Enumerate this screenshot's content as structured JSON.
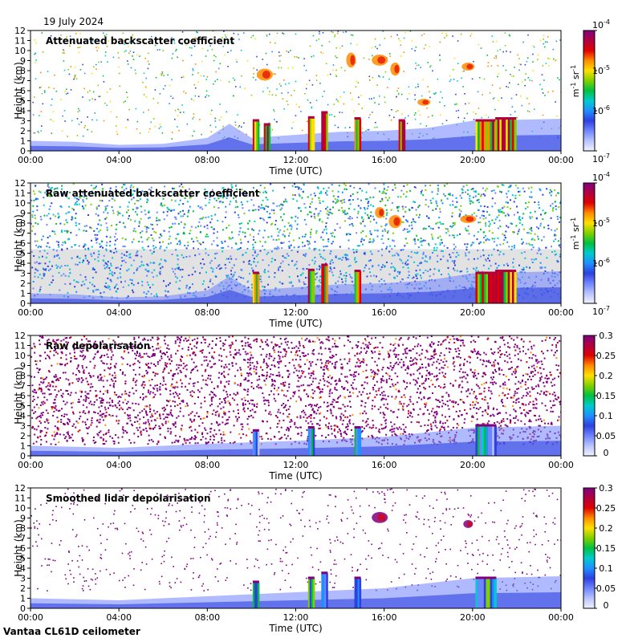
{
  "figure": {
    "date": "19 July 2024",
    "footer": "Vantaa CL61D ceilometer"
  },
  "colors": {
    "colormap": [
      "#f2f2ff",
      "#b8c4ff",
      "#6f84ff",
      "#2f40e0",
      "#1e90ff",
      "#00cccc",
      "#00c040",
      "#80d000",
      "#ffe000",
      "#ff8c00",
      "#e00000",
      "#b00040",
      "#800080"
    ],
    "panel_background": "#ffffff",
    "raw_noise_background": "#cfcfcf",
    "depol_noise": "#800080"
  },
  "chart_data": [
    {
      "type": "heatmap",
      "title": "Attenuated backscatter coefficient",
      "xlabel": "Time (UTC)",
      "ylabel": "Height (km)",
      "x_ticks": [
        "00:00",
        "04:00",
        "08:00",
        "12:00",
        "16:00",
        "20:00",
        "00:00"
      ],
      "xlim_hours": [
        0,
        24
      ],
      "y_ticks": [
        "0",
        "1",
        "2",
        "3",
        "4",
        "5",
        "6",
        "7",
        "8",
        "9",
        "10",
        "11",
        "12"
      ],
      "ylim_km": [
        0,
        12
      ],
      "colorbar": {
        "scale": "log",
        "ticks": [
          "10^-7",
          "10^-6",
          "10^-5",
          "10^-4"
        ],
        "tick_base": "10",
        "tick_exps": [
          "-7",
          "-6",
          "-5",
          "-4"
        ],
        "unit": "m-1 sr-1",
        "unit_base1": "m",
        "unit_exp1": "-1",
        "unit_base2": "sr",
        "unit_exp2": "-1"
      },
      "noise": "sparse",
      "boundary_layer_top_km": [
        [
          0,
          1.0
        ],
        [
          2,
          0.9
        ],
        [
          4,
          0.6
        ],
        [
          6,
          0.7
        ],
        [
          8,
          1.3
        ],
        [
          9,
          2.7
        ],
        [
          10,
          1.3
        ],
        [
          12,
          1.6
        ],
        [
          14,
          1.9
        ],
        [
          16,
          2.0
        ],
        [
          18,
          2.3
        ],
        [
          20,
          3.0
        ],
        [
          22,
          3.1
        ],
        [
          24,
          3.2
        ]
      ],
      "features": [
        {
          "time_h": 10.2,
          "base_km": 0.0,
          "top_km": 3.0,
          "kind": "convective"
        },
        {
          "time_h": 10.7,
          "base_km": 0.0,
          "top_km": 2.6,
          "kind": "convective"
        },
        {
          "time_h": 12.7,
          "base_km": 0.0,
          "top_km": 3.3,
          "kind": "convective"
        },
        {
          "time_h": 13.3,
          "base_km": 0.0,
          "top_km": 3.8,
          "kind": "convective"
        },
        {
          "time_h": 14.8,
          "base_km": 0.0,
          "top_km": 3.2,
          "kind": "convective"
        },
        {
          "time_h": 16.8,
          "base_km": 0.0,
          "top_km": 3.0,
          "kind": "convective"
        },
        {
          "time_h": 20.6,
          "base_km": 0.0,
          "top_km": 3.0,
          "kind": "cloud_layer"
        },
        {
          "time_h": 21.5,
          "base_km": 0.0,
          "top_km": 3.2,
          "kind": "cloud_layer"
        },
        {
          "time_h": 15.8,
          "base_km": 8.5,
          "top_km": 9.6,
          "kind": "cirrus"
        },
        {
          "time_h": 16.5,
          "base_km": 7.5,
          "top_km": 8.8,
          "kind": "cirrus"
        },
        {
          "time_h": 19.8,
          "base_km": 8.0,
          "top_km": 8.8,
          "kind": "cirrus"
        },
        {
          "time_h": 10.6,
          "base_km": 7.0,
          "top_km": 8.2,
          "kind": "fallstreak"
        },
        {
          "time_h": 14.5,
          "base_km": 8.3,
          "top_km": 9.8,
          "kind": "fallstreak"
        },
        {
          "time_h": 17.8,
          "base_km": 4.5,
          "top_km": 5.2,
          "kind": "cirrus"
        }
      ]
    },
    {
      "type": "heatmap",
      "title": "Raw attenuated backscatter coefficient",
      "xlabel": "Time (UTC)",
      "ylabel": "Height (km)",
      "x_ticks": [
        "00:00",
        "04:00",
        "08:00",
        "12:00",
        "16:00",
        "20:00",
        "00:00"
      ],
      "xlim_hours": [
        0,
        24
      ],
      "y_ticks": [
        "0",
        "1",
        "2",
        "3",
        "4",
        "5",
        "6",
        "7",
        "8",
        "9",
        "10",
        "11",
        "12"
      ],
      "ylim_km": [
        0,
        12
      ],
      "colorbar": {
        "scale": "log",
        "ticks": [
          "10^-7",
          "10^-6",
          "10^-5",
          "10^-4"
        ],
        "tick_base": "10",
        "tick_exps": [
          "-7",
          "-6",
          "-5",
          "-4"
        ],
        "unit": "m-1 sr-1",
        "unit_base1": "m",
        "unit_exp1": "-1",
        "unit_base2": "sr",
        "unit_exp2": "-1"
      },
      "noise": "dense_blue_green",
      "boundary_layer_top_km": [
        [
          0,
          1.0
        ],
        [
          2,
          0.9
        ],
        [
          4,
          0.6
        ],
        [
          6,
          0.7
        ],
        [
          8,
          1.3
        ],
        [
          9,
          2.7
        ],
        [
          10,
          1.3
        ],
        [
          12,
          1.6
        ],
        [
          14,
          1.9
        ],
        [
          16,
          2.0
        ],
        [
          18,
          2.3
        ],
        [
          20,
          3.0
        ],
        [
          22,
          3.1
        ],
        [
          24,
          3.2
        ]
      ],
      "features": [
        {
          "time_h": 10.2,
          "base_km": 0.0,
          "top_km": 3.0,
          "kind": "convective"
        },
        {
          "time_h": 12.7,
          "base_km": 0.0,
          "top_km": 3.3,
          "kind": "convective"
        },
        {
          "time_h": 13.3,
          "base_km": 0.0,
          "top_km": 3.8,
          "kind": "convective"
        },
        {
          "time_h": 14.8,
          "base_km": 0.0,
          "top_km": 3.2,
          "kind": "convective"
        },
        {
          "time_h": 20.6,
          "base_km": 0.0,
          "top_km": 3.0,
          "kind": "cloud_layer"
        },
        {
          "time_h": 21.5,
          "base_km": 0.0,
          "top_km": 3.2,
          "kind": "cloud_layer"
        },
        {
          "time_h": 15.8,
          "base_km": 8.5,
          "top_km": 9.6,
          "kind": "cirrus"
        },
        {
          "time_h": 16.5,
          "base_km": 7.5,
          "top_km": 8.8,
          "kind": "cirrus"
        },
        {
          "time_h": 19.8,
          "base_km": 8.0,
          "top_km": 8.8,
          "kind": "cirrus"
        }
      ]
    },
    {
      "type": "heatmap",
      "title": "Raw depolarisation",
      "xlabel": "Time (UTC)",
      "ylabel": "Height (km)",
      "x_ticks": [
        "00:00",
        "04:00",
        "08:00",
        "12:00",
        "16:00",
        "20:00",
        "00:00"
      ],
      "xlim_hours": [
        0,
        24
      ],
      "y_ticks": [
        "0",
        "1",
        "2",
        "3",
        "4",
        "5",
        "6",
        "7",
        "8",
        "9",
        "10",
        "11",
        "12"
      ],
      "ylim_km": [
        0,
        12
      ],
      "colorbar": {
        "scale": "linear",
        "ticks": [
          "0",
          "0.05",
          "0.1",
          "0.15",
          "0.2",
          "0.25",
          "0.3"
        ],
        "unit": ""
      },
      "noise": "dense_purple",
      "boundary_layer_top_km": [
        [
          0,
          1.0
        ],
        [
          4,
          0.8
        ],
        [
          8,
          1.2
        ],
        [
          12,
          1.5
        ],
        [
          16,
          1.9
        ],
        [
          20,
          2.8
        ],
        [
          24,
          3.0
        ]
      ],
      "features": [
        {
          "time_h": 10.2,
          "base_km": 0.0,
          "top_km": 2.5,
          "kind": "convective"
        },
        {
          "time_h": 12.7,
          "base_km": 0.0,
          "top_km": 2.8,
          "kind": "convective"
        },
        {
          "time_h": 14.8,
          "base_km": 0.0,
          "top_km": 2.8,
          "kind": "convective"
        },
        {
          "time_h": 20.6,
          "base_km": 0.0,
          "top_km": 3.0,
          "kind": "cloud_layer"
        }
      ]
    },
    {
      "type": "heatmap",
      "title": "Smoothed lidar depolarisation",
      "xlabel": "Time (UTC)",
      "ylabel": "Height (km)",
      "x_ticks": [
        "00:00",
        "04:00",
        "08:00",
        "12:00",
        "16:00",
        "20:00",
        "00:00"
      ],
      "xlim_hours": [
        0,
        24
      ],
      "y_ticks": [
        "0",
        "1",
        "2",
        "3",
        "4",
        "5",
        "6",
        "7",
        "8",
        "9",
        "10",
        "11",
        "12"
      ],
      "ylim_km": [
        0,
        12
      ],
      "colorbar": {
        "scale": "linear",
        "ticks": [
          "0",
          "0.05",
          "0.1",
          "0.15",
          "0.2",
          "0.25",
          "0.3"
        ],
        "unit": ""
      },
      "noise": "sparse_purple",
      "boundary_layer_top_km": [
        [
          0,
          1.0
        ],
        [
          4,
          0.8
        ],
        [
          8,
          1.2
        ],
        [
          12,
          1.6
        ],
        [
          16,
          2.0
        ],
        [
          20,
          3.0
        ],
        [
          24,
          3.2
        ]
      ],
      "features": [
        {
          "time_h": 10.2,
          "base_km": 0.0,
          "top_km": 2.6,
          "kind": "convective"
        },
        {
          "time_h": 12.7,
          "base_km": 0.0,
          "top_km": 3.0,
          "kind": "convective"
        },
        {
          "time_h": 13.3,
          "base_km": 0.0,
          "top_km": 3.5,
          "kind": "convective"
        },
        {
          "time_h": 14.8,
          "base_km": 0.0,
          "top_km": 3.0,
          "kind": "convective"
        },
        {
          "time_h": 20.6,
          "base_km": 0.0,
          "top_km": 3.0,
          "kind": "cloud_layer"
        },
        {
          "time_h": 15.8,
          "base_km": 8.5,
          "top_km": 9.6,
          "kind": "cirrus_depol"
        },
        {
          "time_h": 19.8,
          "base_km": 8.0,
          "top_km": 8.8,
          "kind": "cirrus_depol"
        }
      ]
    }
  ]
}
